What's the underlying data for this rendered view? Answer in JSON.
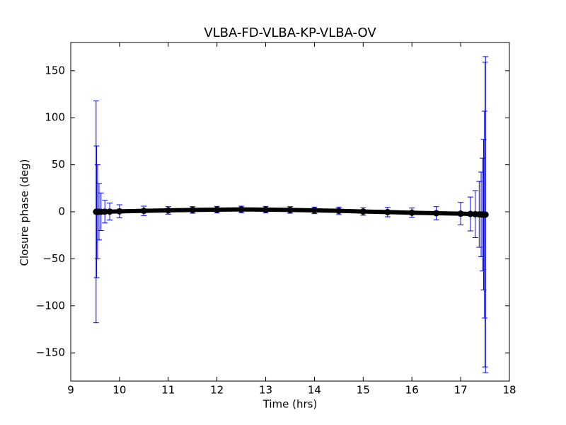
{
  "chart_data": {
    "type": "errorbar",
    "title": "VLBA-FD-VLBA-KP-VLBA-OV",
    "x_label": "Time (hrs)",
    "y_label": "Closure phase (deg)",
    "x": [
      9.52,
      9.53,
      9.55,
      9.58,
      9.62,
      9.7,
      9.8,
      10.0,
      10.5,
      11.0,
      11.5,
      12.0,
      12.5,
      13.0,
      13.5,
      14.0,
      14.5,
      15.0,
      15.5,
      16.0,
      16.5,
      17.0,
      17.2,
      17.3,
      17.38,
      17.42,
      17.45,
      17.47,
      17.49,
      17.5,
      17.51
    ],
    "values": [
      0,
      0,
      0,
      0,
      0,
      0.1,
      0.2,
      0.5,
      1,
      1.5,
      2,
      2.3,
      2.5,
      2.3,
      2,
      1.5,
      1,
      0.3,
      -0.3,
      -1,
      -1.5,
      -2,
      -2.3,
      -2.5,
      -2.7,
      -2.8,
      -2.9,
      -3,
      -3,
      -3,
      -3
    ],
    "errors": [
      118,
      70,
      50,
      30,
      20,
      12,
      9,
      7,
      5,
      4,
      3.5,
      3.5,
      3.5,
      3.5,
      3.5,
      3.5,
      4,
      4,
      5,
      5,
      7,
      12,
      18,
      25,
      35,
      45,
      60,
      80,
      110,
      162,
      168
    ],
    "marker_color": "#000000",
    "error_color": "#0000ff",
    "xlim": [
      9,
      18
    ],
    "xticks": [
      9,
      10,
      11,
      12,
      13,
      14,
      15,
      16,
      17,
      18
    ],
    "ylim": [
      -180,
      180
    ],
    "yticks": [
      {
        "value": -150,
        "label": "−150"
      },
      {
        "value": -100,
        "label": "−100"
      },
      {
        "value": -50,
        "label": "−50"
      },
      0,
      50,
      100,
      150
    ]
  }
}
